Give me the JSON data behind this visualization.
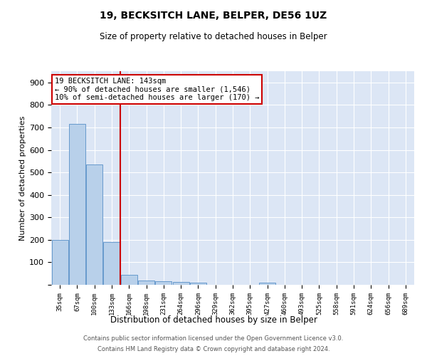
{
  "title": "19, BECKSITCH LANE, BELPER, DE56 1UZ",
  "subtitle": "Size of property relative to detached houses in Belper",
  "xlabel": "Distribution of detached houses by size in Belper",
  "ylabel": "Number of detached properties",
  "categories": [
    "35sqm",
    "67sqm",
    "100sqm",
    "133sqm",
    "166sqm",
    "198sqm",
    "231sqm",
    "264sqm",
    "296sqm",
    "329sqm",
    "362sqm",
    "395sqm",
    "427sqm",
    "460sqm",
    "493sqm",
    "525sqm",
    "558sqm",
    "591sqm",
    "624sqm",
    "656sqm",
    "689sqm"
  ],
  "values": [
    200,
    715,
    535,
    190,
    45,
    20,
    15,
    12,
    8,
    0,
    0,
    0,
    8,
    0,
    0,
    0,
    0,
    0,
    0,
    0,
    0
  ],
  "bar_color": "#b8d0ea",
  "bar_edge_color": "#6699cc",
  "red_line_x": 3.5,
  "annotation_line1": "19 BECKSITCH LANE: 143sqm",
  "annotation_line2": "← 90% of detached houses are smaller (1,546)",
  "annotation_line3": "10% of semi-detached houses are larger (170) →",
  "annotation_box_color": "#ffffff",
  "annotation_box_edge": "#cc0000",
  "ylim": [
    0,
    950
  ],
  "yticks": [
    0,
    100,
    200,
    300,
    400,
    500,
    600,
    700,
    800,
    900
  ],
  "background_color": "#dce6f5",
  "grid_color": "#ffffff",
  "footer_line1": "Contains HM Land Registry data © Crown copyright and database right 2024.",
  "footer_line2": "Contains public sector information licensed under the Open Government Licence v3.0."
}
